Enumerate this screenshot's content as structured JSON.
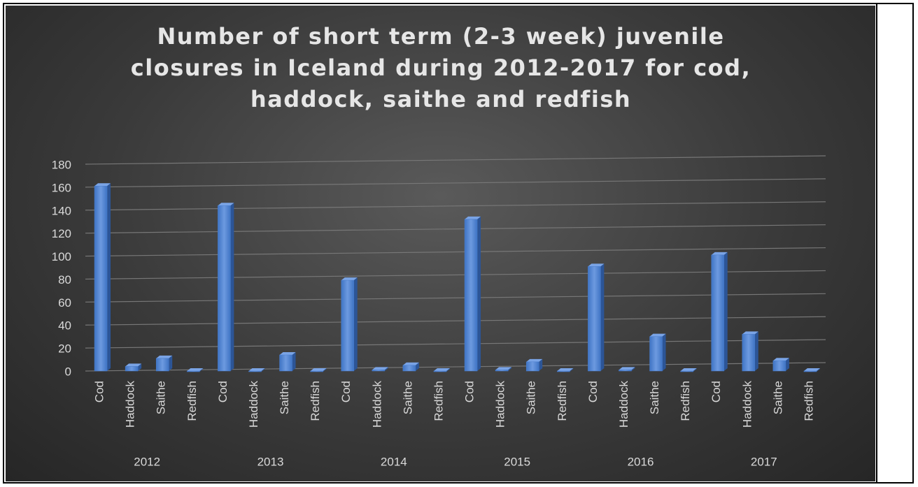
{
  "chart_data": {
    "type": "bar",
    "title": "Number of short term (2-3 week) juvenile closures in Iceland during 2012-2017 for cod, haddock, saithe and redfish",
    "categories": [
      "Cod",
      "Haddock",
      "Saithe",
      "Redfish",
      "Cod",
      "Haddock",
      "Saithe",
      "Redfish",
      "Cod",
      "Haddock",
      "Saithe",
      "Redfish",
      "Cod",
      "Haddock",
      "Saithe",
      "Redfish",
      "Cod",
      "Haddock",
      "Saithe",
      "Redfish",
      "Cod",
      "Haddock",
      "Saithe",
      "Redfish"
    ],
    "groups": [
      "2012",
      "2013",
      "2014",
      "2015",
      "2016",
      "2017"
    ],
    "values": [
      161,
      4,
      11,
      0,
      144,
      0,
      14,
      0,
      79,
      1,
      5,
      0,
      132,
      1,
      8,
      0,
      91,
      1,
      30,
      0,
      101,
      32,
      9,
      0
    ],
    "color": "#4a7fd0",
    "ylim": [
      0,
      180
    ],
    "yticks": [
      0,
      20,
      40,
      60,
      80,
      100,
      120,
      140,
      160,
      180
    ],
    "grid": true
  }
}
